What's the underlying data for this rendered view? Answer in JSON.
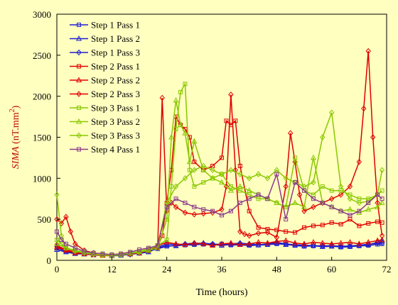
{
  "chart_data": {
    "type": "line",
    "xlabel": "Time (hours)",
    "ylabel": {
      "italic": "SIMA",
      "rest": " (nT.mm",
      "sup": "2",
      "close": ")"
    },
    "xlim": [
      0,
      72
    ],
    "ylim": [
      0,
      3000
    ],
    "xticks": [
      0,
      12,
      24,
      36,
      48,
      60,
      72
    ],
    "yticks": [
      0,
      500,
      1000,
      1500,
      2000,
      2500,
      3000
    ],
    "grid": false,
    "legend_position": "top-left",
    "series": [
      {
        "name": "Step 1 Pass 1",
        "color": "#1f1fd0",
        "marker": "square",
        "x": [
          0,
          2,
          4,
          6,
          8,
          10,
          12,
          14,
          16,
          18,
          20,
          22,
          24,
          26,
          28,
          30,
          32,
          34,
          36,
          38,
          40,
          42,
          44,
          46,
          48,
          50,
          52,
          54,
          56,
          58,
          60,
          62,
          64,
          66,
          68,
          70,
          71
        ],
        "y": [
          150,
          110,
          90,
          80,
          70,
          60,
          60,
          70,
          80,
          90,
          110,
          140,
          170,
          180,
          185,
          190,
          195,
          190,
          200,
          185,
          190,
          180,
          185,
          190,
          200,
          195,
          180,
          170,
          175,
          170,
          175,
          160,
          165,
          175,
          180,
          195,
          200
        ]
      },
      {
        "name": "Step 1 Pass 2",
        "color": "#1f1fd0",
        "marker": "triangle",
        "x": [
          0,
          2,
          4,
          6,
          8,
          10,
          12,
          14,
          16,
          18,
          20,
          22,
          24,
          26,
          28,
          30,
          32,
          34,
          36,
          38,
          40,
          42,
          44,
          46,
          48,
          50,
          52,
          54,
          56,
          58,
          60,
          62,
          64,
          66,
          68,
          70,
          71
        ],
        "y": [
          130,
          100,
          80,
          75,
          65,
          60,
          55,
          60,
          75,
          85,
          100,
          150,
          180,
          175,
          190,
          200,
          210,
          195,
          180,
          195,
          200,
          190,
          185,
          195,
          210,
          190,
          185,
          175,
          180,
          165,
          170,
          165,
          170,
          180,
          190,
          220,
          230
        ]
      },
      {
        "name": "Step 1 Pass 3",
        "color": "#1f1fd0",
        "marker": "diamond",
        "x": [
          0,
          2,
          4,
          6,
          8,
          10,
          12,
          14,
          16,
          18,
          20,
          22,
          24,
          26,
          28,
          30,
          32,
          34,
          36,
          38,
          40,
          42,
          44,
          46,
          48,
          50,
          52,
          54,
          56,
          58,
          60,
          62,
          64,
          66,
          68,
          70,
          71
        ],
        "y": [
          170,
          120,
          95,
          85,
          75,
          65,
          60,
          65,
          70,
          90,
          120,
          160,
          200,
          190,
          200,
          210,
          205,
          200,
          190,
          200,
          210,
          200,
          190,
          200,
          220,
          200,
          190,
          185,
          180,
          175,
          180,
          170,
          175,
          185,
          195,
          210,
          215
        ]
      },
      {
        "name": "Step 2 Pass 1",
        "color": "#e00000",
        "marker": "square",
        "x": [
          0,
          2,
          4,
          6,
          8,
          10,
          12,
          14,
          16,
          18,
          20,
          22,
          23,
          24,
          25,
          26,
          27,
          28,
          29,
          30,
          32,
          34,
          36,
          37,
          38,
          39,
          40,
          42,
          44,
          46,
          48,
          50,
          52,
          54,
          56,
          58,
          60,
          62,
          64,
          66,
          68,
          70,
          71
        ],
        "y": [
          180,
          130,
          100,
          80,
          70,
          60,
          60,
          70,
          80,
          90,
          120,
          160,
          300,
          700,
          1100,
          1750,
          1650,
          1600,
          1500,
          1200,
          1100,
          1150,
          1250,
          1700,
          1650,
          1700,
          1150,
          600,
          400,
          380,
          370,
          350,
          340,
          400,
          420,
          430,
          460,
          440,
          500,
          420,
          450,
          470,
          460
        ]
      },
      {
        "name": "Step 2 Pass 2",
        "color": "#e00000",
        "marker": "triangle",
        "x": [
          0,
          2,
          4,
          6,
          8,
          10,
          12,
          14,
          16,
          18,
          20,
          22,
          24,
          26,
          28,
          30,
          32,
          34,
          36,
          38,
          40,
          42,
          44,
          46,
          48,
          50,
          52,
          54,
          56,
          58,
          60,
          62,
          64,
          66,
          68,
          70,
          71
        ],
        "y": [
          160,
          120,
          90,
          80,
          70,
          60,
          60,
          70,
          80,
          100,
          130,
          180,
          220,
          200,
          190,
          210,
          200,
          180,
          200,
          210,
          190,
          200,
          220,
          210,
          230,
          240,
          210,
          200,
          220,
          210,
          200,
          210,
          220,
          200,
          220,
          240,
          250
        ]
      },
      {
        "name": "Step 2 Pass 3",
        "color": "#e00000",
        "marker": "diamond",
        "x": [
          0,
          1,
          2,
          3,
          4,
          6,
          8,
          10,
          12,
          14,
          16,
          18,
          20,
          22,
          23,
          24,
          25,
          26,
          28,
          30,
          32,
          34,
          36,
          37,
          38,
          39,
          40,
          41,
          42,
          44,
          46,
          48,
          50,
          51,
          52,
          53,
          54,
          56,
          58,
          60,
          62,
          64,
          66,
          67,
          68,
          69,
          70,
          71
        ],
        "y": [
          500,
          450,
          530,
          350,
          200,
          120,
          90,
          70,
          60,
          70,
          80,
          100,
          120,
          150,
          1980,
          600,
          700,
          650,
          580,
          560,
          570,
          580,
          620,
          900,
          2020,
          1100,
          350,
          320,
          300,
          330,
          340,
          280,
          900,
          1550,
          1200,
          800,
          600,
          650,
          700,
          750,
          800,
          900,
          1200,
          1850,
          2550,
          1500,
          700,
          300
        ]
      },
      {
        "name": "Step 3 Pass 1",
        "color": "#88c800",
        "marker": "square",
        "x": [
          0,
          1,
          2,
          4,
          6,
          8,
          10,
          12,
          14,
          16,
          18,
          20,
          22,
          24,
          25,
          26,
          27,
          28,
          29,
          30,
          32,
          34,
          36,
          38,
          40,
          42,
          44,
          46,
          48,
          50,
          52,
          54,
          56,
          58,
          60,
          62,
          64,
          66,
          68,
          70,
          71
        ],
        "y": [
          250,
          200,
          150,
          120,
          100,
          80,
          70,
          60,
          70,
          90,
          110,
          140,
          180,
          250,
          900,
          1600,
          2050,
          2150,
          1100,
          900,
          950,
          1000,
          1050,
          900,
          850,
          800,
          750,
          750,
          700,
          650,
          1250,
          850,
          800,
          900,
          850,
          850,
          800,
          750,
          750,
          800,
          850
        ]
      },
      {
        "name": "Step 3 Pass 2",
        "color": "#88c800",
        "marker": "triangle",
        "x": [
          0,
          2,
          4,
          6,
          8,
          10,
          12,
          14,
          16,
          18,
          20,
          22,
          24,
          25,
          26,
          27,
          28,
          29,
          30,
          32,
          34,
          36,
          38,
          40,
          42,
          44,
          46,
          48,
          50,
          52,
          54,
          56,
          58,
          60,
          62,
          64,
          66,
          68,
          70,
          71
        ],
        "y": [
          200,
          150,
          120,
          100,
          80,
          70,
          60,
          70,
          90,
          100,
          120,
          150,
          500,
          1500,
          1950,
          1650,
          1550,
          1200,
          1450,
          1100,
          1000,
          950,
          850,
          900,
          850,
          800,
          750,
          700,
          650,
          700,
          650,
          1250,
          700,
          650,
          600,
          620,
          580,
          620,
          650,
          700
        ]
      },
      {
        "name": "Step 3 Pass 3",
        "color": "#88c800",
        "marker": "diamond",
        "x": [
          0,
          1,
          2,
          4,
          6,
          8,
          10,
          12,
          14,
          16,
          18,
          20,
          22,
          24,
          26,
          28,
          30,
          32,
          34,
          36,
          38,
          40,
          42,
          44,
          46,
          48,
          50,
          52,
          54,
          56,
          58,
          60,
          62,
          64,
          66,
          68,
          70,
          71
        ],
        "y": [
          800,
          300,
          150,
          110,
          90,
          75,
          65,
          60,
          70,
          85,
          100,
          130,
          180,
          700,
          900,
          1000,
          1100,
          1150,
          1100,
          1050,
          1100,
          1050,
          1000,
          1050,
          1000,
          1100,
          1000,
          950,
          900,
          950,
          1500,
          1800,
          900,
          750,
          700,
          720,
          800,
          1100
        ]
      },
      {
        "name": "Step 4 Pass 1",
        "color": "#8b3a8b",
        "marker": "square",
        "x": [
          0,
          1,
          2,
          4,
          6,
          8,
          10,
          12,
          14,
          16,
          18,
          20,
          22,
          24,
          26,
          28,
          30,
          32,
          34,
          36,
          38,
          40,
          42,
          44,
          46,
          48,
          50,
          52,
          54,
          56,
          58,
          60,
          62,
          64,
          66,
          68,
          70,
          71
        ],
        "y": [
          350,
          250,
          200,
          150,
          110,
          90,
          80,
          70,
          80,
          100,
          130,
          150,
          180,
          650,
          750,
          700,
          650,
          620,
          600,
          550,
          600,
          700,
          750,
          800,
          750,
          1050,
          500,
          950,
          850,
          750,
          700,
          650,
          600,
          550,
          600,
          700,
          800,
          750
        ]
      }
    ]
  }
}
